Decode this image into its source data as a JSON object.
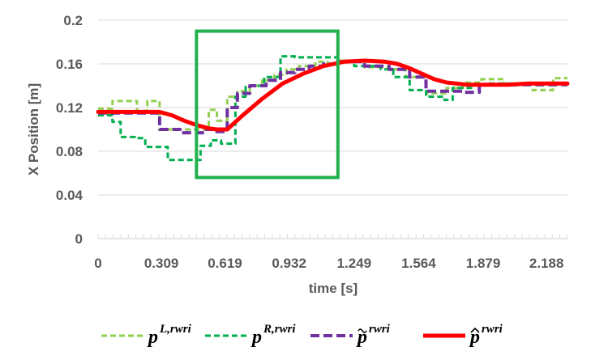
{
  "chart_data": {
    "type": "line",
    "xlabel": "time [s]",
    "ylabel": "X  Position [m]",
    "xlim": [
      0,
      2.29
    ],
    "ylim": [
      0,
      0.2
    ],
    "x_ticks": [
      0,
      0.309,
      0.619,
      0.932,
      1.249,
      1.564,
      1.879,
      2.188
    ],
    "x_tick_labels": [
      "0",
      "0.309",
      "0.619",
      "0.932",
      "1.249",
      "1.564",
      "1.879",
      "2.188"
    ],
    "y_ticks": [
      0,
      0.04,
      0.08,
      0.12,
      0.16,
      0.2
    ],
    "y_tick_labels": [
      "0",
      "0.04",
      "0.08",
      "0.12",
      "0.16",
      "0.2"
    ],
    "grid": "horizontal",
    "legend_position": "bottom",
    "highlight_box": {
      "x_range": [
        0.48,
        1.17
      ],
      "y_range": [
        0.056,
        0.19
      ],
      "color": "#22b14c"
    },
    "series": [
      {
        "name": "p",
        "superscript": "L,rwri",
        "accent": "",
        "color": "#92d050",
        "style": "dashed",
        "x": [
          0,
          0.07,
          0.07,
          0.19,
          0.19,
          0.24,
          0.24,
          0.3,
          0.3,
          0.46,
          0.46,
          0.54,
          0.54,
          0.58,
          0.58,
          0.63,
          0.63,
          0.68,
          0.68,
          0.74,
          0.74,
          0.8,
          0.8,
          0.86,
          0.86,
          0.92,
          0.92,
          0.98,
          0.98,
          1.06,
          1.06,
          1.12,
          1.12,
          1.18,
          1.18,
          1.3,
          1.3,
          1.42,
          1.42,
          1.5,
          1.5,
          1.6,
          1.6,
          1.7,
          1.7,
          1.78,
          1.78,
          1.87,
          1.87,
          1.98,
          1.98,
          2.12,
          2.12,
          2.22,
          2.22,
          2.29
        ],
        "y": [
          0.119,
          0.119,
          0.126,
          0.126,
          0.117,
          0.117,
          0.126,
          0.126,
          0.1,
          0.1,
          0.1,
          0.1,
          0.118,
          0.118,
          0.108,
          0.108,
          0.13,
          0.13,
          0.135,
          0.135,
          0.14,
          0.14,
          0.145,
          0.145,
          0.15,
          0.15,
          0.155,
          0.155,
          0.158,
          0.158,
          0.162,
          0.162,
          0.16,
          0.16,
          0.163,
          0.163,
          0.157,
          0.157,
          0.155,
          0.155,
          0.148,
          0.148,
          0.133,
          0.133,
          0.138,
          0.138,
          0.143,
          0.143,
          0.146,
          0.146,
          0.142,
          0.142,
          0.136,
          0.136,
          0.147,
          0.147
        ]
      },
      {
        "name": "p",
        "superscript": "R,rwri",
        "accent": "",
        "color": "#00b050",
        "style": "dashed",
        "x": [
          0,
          0.07,
          0.07,
          0.11,
          0.11,
          0.18,
          0.18,
          0.23,
          0.23,
          0.34,
          0.34,
          0.5,
          0.5,
          0.55,
          0.55,
          0.6,
          0.6,
          0.67,
          0.67,
          0.72,
          0.72,
          0.81,
          0.81,
          0.89,
          0.89,
          0.96,
          0.96,
          1.05,
          1.05,
          1.17,
          1.17,
          1.25,
          1.25,
          1.38,
          1.38,
          1.44,
          1.44,
          1.52,
          1.52,
          1.6,
          1.6,
          1.69,
          1.69,
          1.73,
          1.73,
          1.82,
          1.82,
          1.9,
          1.9,
          2.29
        ],
        "y": [
          0.113,
          0.113,
          0.107,
          0.107,
          0.093,
          0.093,
          0.092,
          0.092,
          0.084,
          0.084,
          0.072,
          0.072,
          0.085,
          0.085,
          0.09,
          0.09,
          0.087,
          0.087,
          0.13,
          0.13,
          0.14,
          0.14,
          0.148,
          0.148,
          0.167,
          0.167,
          0.166,
          0.166,
          0.166,
          0.166,
          0.162,
          0.162,
          0.158,
          0.158,
          0.155,
          0.155,
          0.148,
          0.148,
          0.136,
          0.136,
          0.13,
          0.13,
          0.127,
          0.127,
          0.138,
          0.138,
          0.141,
          0.141,
          0.142,
          0.142
        ]
      },
      {
        "name": "p",
        "superscript": "rwri",
        "accent": "tilde",
        "color": "#7030a0",
        "style": "dashed",
        "x": [
          0,
          0.3,
          0.3,
          0.4,
          0.4,
          0.52,
          0.52,
          0.58,
          0.58,
          0.63,
          0.63,
          0.68,
          0.68,
          0.74,
          0.74,
          0.82,
          0.82,
          0.89,
          0.89,
          0.96,
          0.96,
          1.03,
          1.03,
          1.1,
          1.1,
          1.18,
          1.18,
          1.3,
          1.3,
          1.42,
          1.42,
          1.52,
          1.52,
          1.6,
          1.6,
          1.68,
          1.68,
          1.78,
          1.78,
          1.86,
          1.86,
          2.29
        ],
        "y": [
          0.115,
          0.115,
          0.1,
          0.1,
          0.097,
          0.097,
          0.1,
          0.1,
          0.098,
          0.098,
          0.12,
          0.12,
          0.133,
          0.133,
          0.14,
          0.14,
          0.145,
          0.145,
          0.152,
          0.152,
          0.155,
          0.155,
          0.158,
          0.158,
          0.16,
          0.16,
          0.162,
          0.162,
          0.158,
          0.158,
          0.155,
          0.155,
          0.148,
          0.148,
          0.135,
          0.135,
          0.135,
          0.135,
          0.134,
          0.134,
          0.141,
          0.141
        ]
      },
      {
        "name": "p",
        "superscript": "rwri",
        "accent": "hat",
        "color": "#ff0000",
        "style": "solid",
        "x": [
          0,
          0.3,
          0.36,
          0.42,
          0.48,
          0.54,
          0.58,
          0.63,
          0.7,
          0.8,
          0.9,
          1.0,
          1.1,
          1.2,
          1.3,
          1.4,
          1.46,
          1.52,
          1.58,
          1.64,
          1.7,
          1.8,
          1.9,
          2.0,
          2.1,
          2.29
        ],
        "y": [
          0.116,
          0.116,
          0.113,
          0.108,
          0.104,
          0.101,
          0.1,
          0.1,
          0.112,
          0.128,
          0.142,
          0.151,
          0.158,
          0.162,
          0.163,
          0.162,
          0.16,
          0.156,
          0.151,
          0.146,
          0.143,
          0.141,
          0.141,
          0.141,
          0.142,
          0.142
        ]
      }
    ]
  }
}
